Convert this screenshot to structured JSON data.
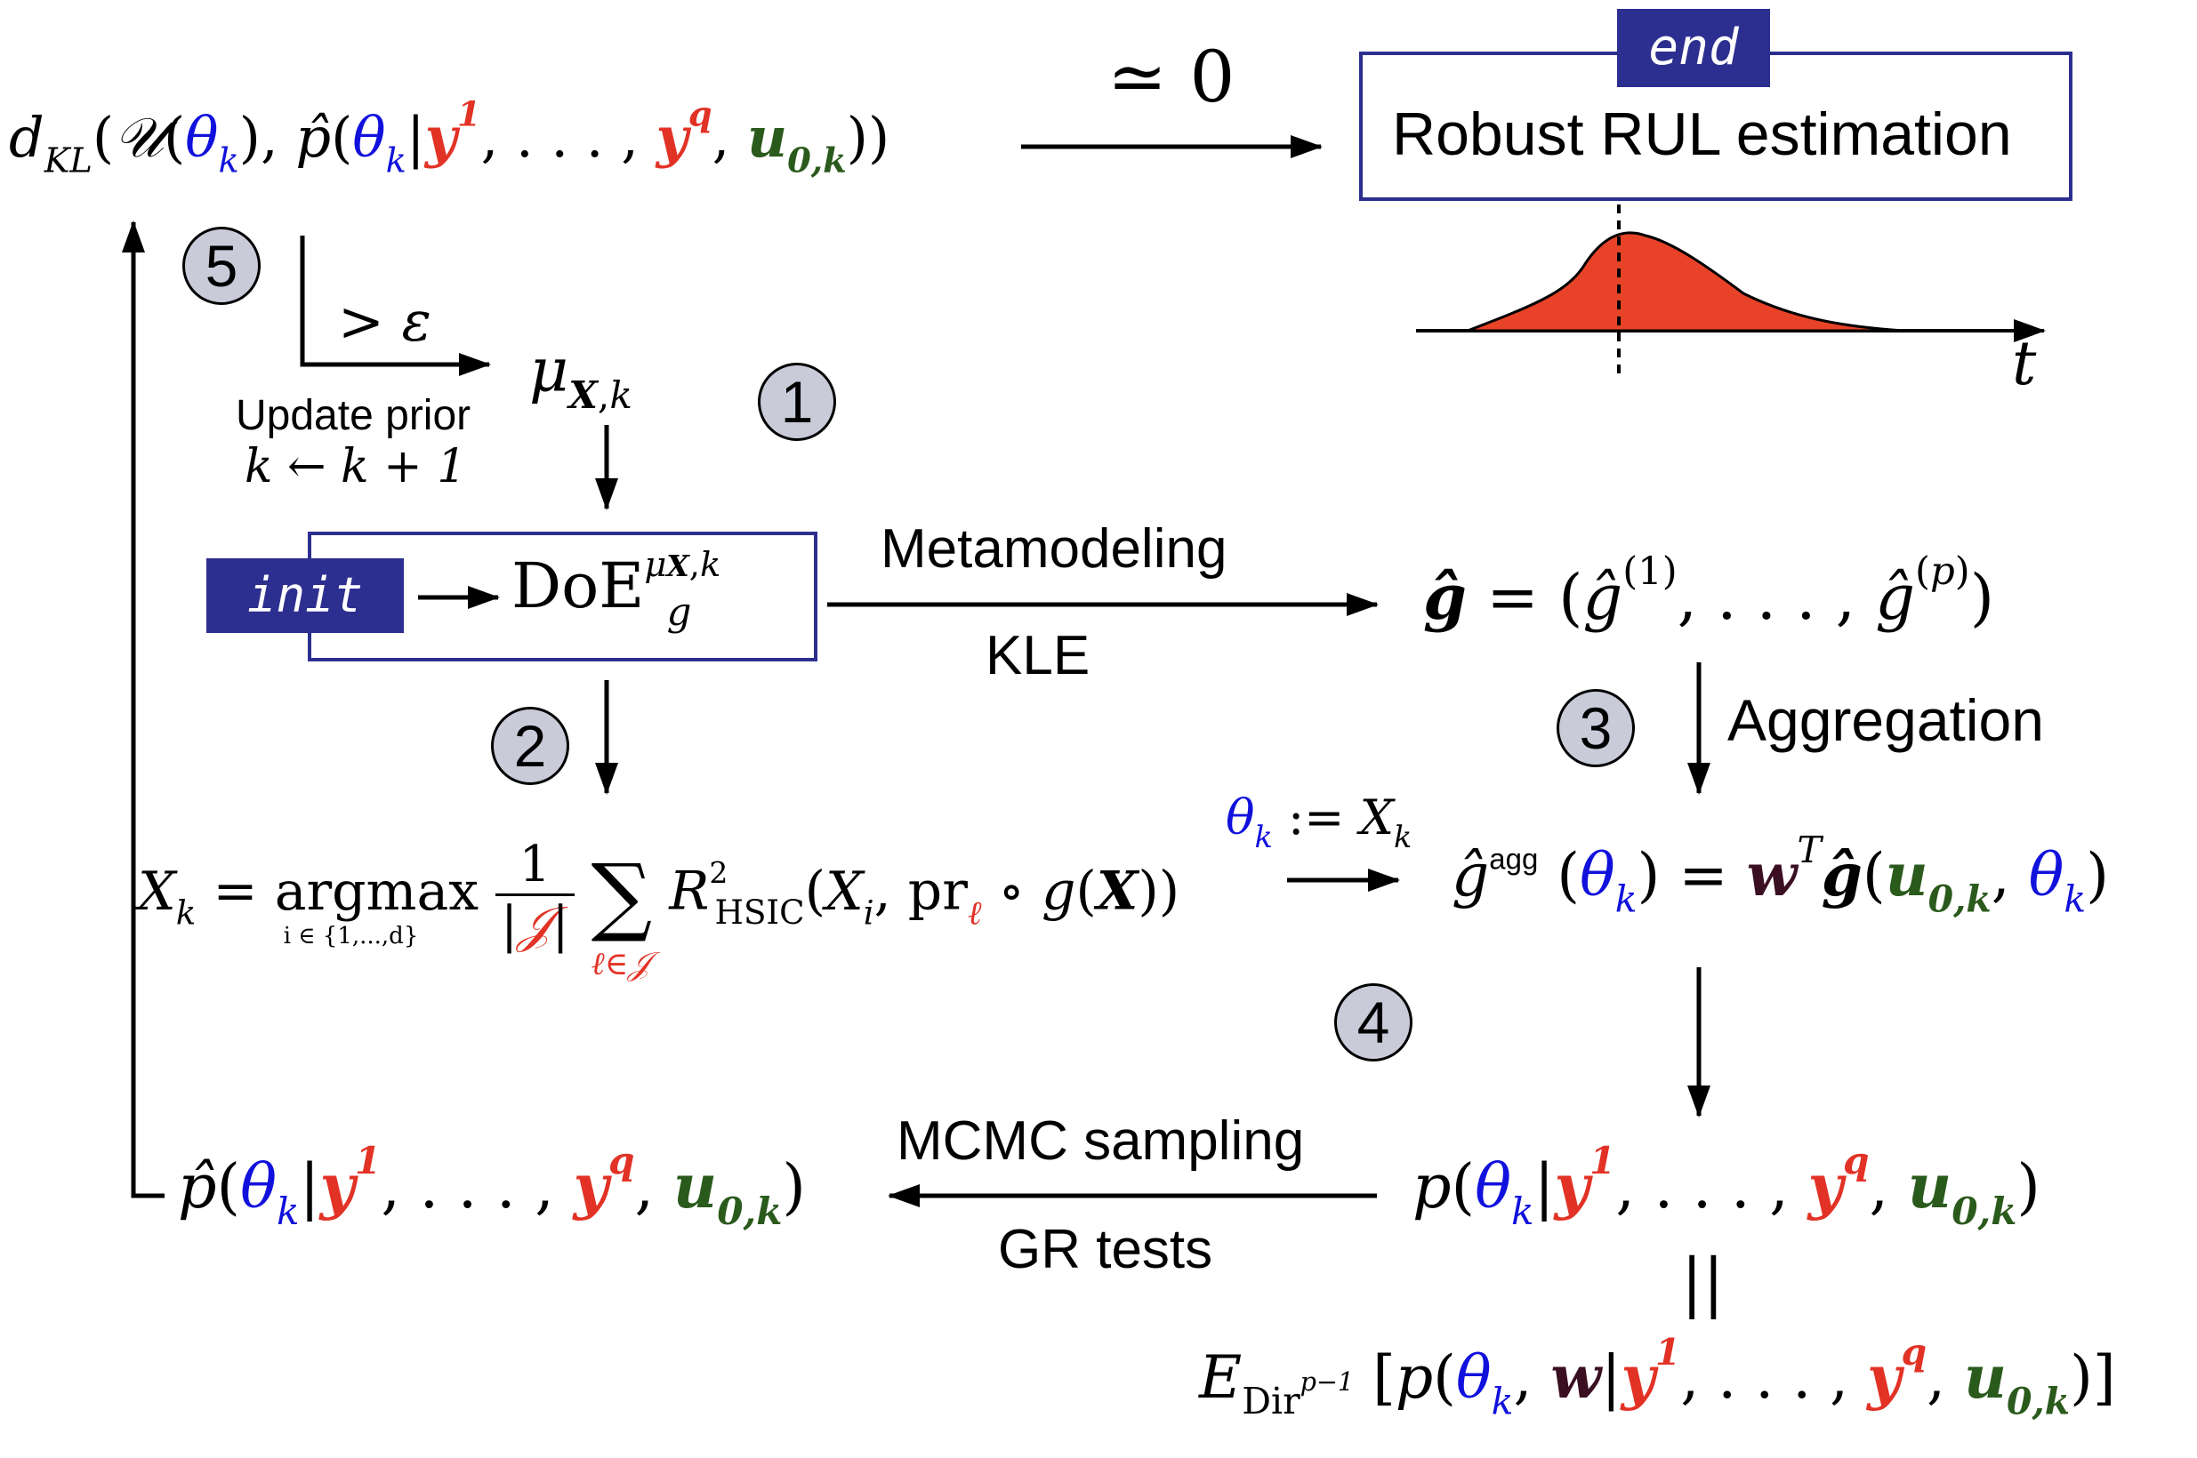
{
  "colors": {
    "theta": "#1111dd",
    "observation": "#e23226",
    "control": "#2a5a1c",
    "weights": "#3a0f22",
    "accent_box": "#2c2f8f",
    "badge_fill": "#c9cbd9",
    "density_fill": "#e84328"
  },
  "steps": [
    "1",
    "2",
    "3",
    "4",
    "5"
  ],
  "end_tag": "end",
  "init_tag": "init",
  "final_box_label": "Robust RUL estimation",
  "approx_zero": "≃ 0",
  "threshold": "> ε",
  "update_prior_title": "Update prior",
  "update_prior_rule": "k ← k + 1",
  "time_axis_label": "t",
  "edge_labels": {
    "metamodeling": "Metamodeling",
    "kle": "KLE",
    "aggregation": "Aggregation",
    "mcmc": "MCMC sampling",
    "gr_tests": "GR tests"
  },
  "equiv": "||",
  "assign": "θk := Xk",
  "argmax_subscript": "i ∈ {1,...,d}",
  "sum_subscript": "ℓ∈𝒥",
  "agg_superscript": "agg"
}
